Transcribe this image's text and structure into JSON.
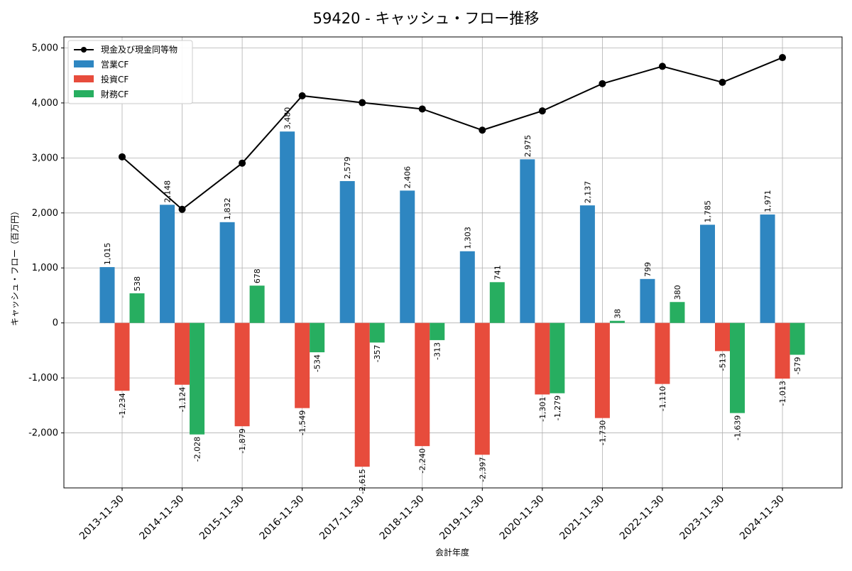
{
  "colors": {
    "operating": "#2e86c1",
    "investing": "#e74c3c",
    "financing": "#27ae60",
    "cash_line": "#000000",
    "grid": "#b0b0b0"
  },
  "chart_data": {
    "type": "bar",
    "title": "59420 - キャッシュ・フロー推移",
    "xlabel": "会計年度",
    "ylabel": "キャッシュ・フロー（百万円）",
    "ylim": [
      -3000,
      5200
    ],
    "yticks": [
      -2000,
      -1000,
      0,
      1000,
      2000,
      3000,
      4000,
      5000
    ],
    "ytick_labels": [
      "-2,000",
      "-1,000",
      "0",
      "1,000",
      "2,000",
      "3,000",
      "4,000",
      "5,000"
    ],
    "grid": true,
    "legend_position": "top-left",
    "categories": [
      "2013-11-30",
      "2014-11-30",
      "2015-11-30",
      "2016-11-30",
      "2017-11-30",
      "2018-11-30",
      "2019-11-30",
      "2020-11-30",
      "2021-11-30",
      "2022-11-30",
      "2023-11-30",
      "2024-11-30"
    ],
    "series": [
      {
        "name": "営業CF",
        "kind": "bar",
        "color": "#2e86c1",
        "values": [
          1015,
          2148,
          1832,
          3480,
          2579,
          2406,
          1303,
          2975,
          2137,
          799,
          1785,
          1971
        ],
        "labels": [
          "1,015",
          "2,148",
          "1,832",
          "3,480",
          "2,579",
          "2,406",
          "1,303",
          "2,975",
          "2,137",
          "799",
          "1,785",
          "1,971"
        ]
      },
      {
        "name": "投資CF",
        "kind": "bar",
        "color": "#e74c3c",
        "values": [
          -1234,
          -1124,
          -1879,
          -1549,
          -2615,
          -2240,
          -2397,
          -1301,
          -1730,
          -1110,
          -513,
          -1013
        ],
        "labels": [
          "-1,234",
          "-1,124",
          "-1,879",
          "-1,549",
          "-2,615",
          "-2,240",
          "-2,397",
          "-1,301",
          "-1,730",
          "-1,110",
          "-513",
          "-1,013"
        ]
      },
      {
        "name": "財務CF",
        "kind": "bar",
        "color": "#27ae60",
        "values": [
          538,
          -2028,
          678,
          -534,
          -357,
          -313,
          741,
          -1279,
          38,
          380,
          -1639,
          -579
        ],
        "labels": [
          "538",
          "-2,028",
          "678",
          "-534",
          "-357",
          "-313",
          "741",
          "-1,279",
          "38",
          "380",
          "-1,639",
          "-579"
        ]
      }
    ],
    "line_series": {
      "name": "現金及び現金同等物",
      "kind": "line",
      "color": "#000000",
      "values": [
        3020,
        2065,
        2905,
        4130,
        4005,
        3890,
        3505,
        3855,
        4350,
        4665,
        4375,
        4825
      ]
    }
  }
}
